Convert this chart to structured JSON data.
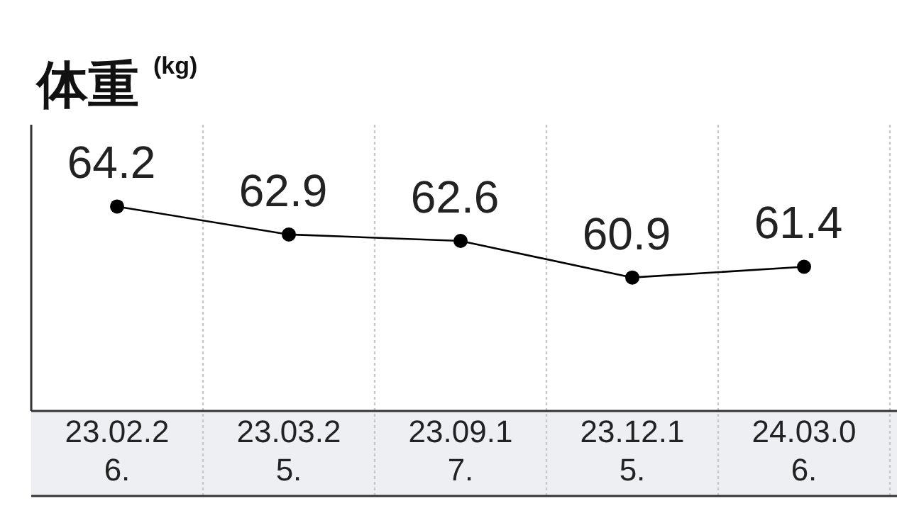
{
  "chart_data": {
    "type": "line",
    "title": "体重",
    "ylabel": "(kg)",
    "categories": [
      "23.02.26.",
      "23.03.25.",
      "23.09.17.",
      "23.12.15.",
      "24.03.06."
    ],
    "series": [
      {
        "color": "#000000",
        "values": [
          64.2,
          62.9,
          62.6,
          60.9,
          61.4
        ]
      }
    ],
    "ylim": [
      54.7,
      68.0
    ],
    "data_labels": true,
    "grid": "x",
    "marker": "circle",
    "line_style": "solid"
  }
}
